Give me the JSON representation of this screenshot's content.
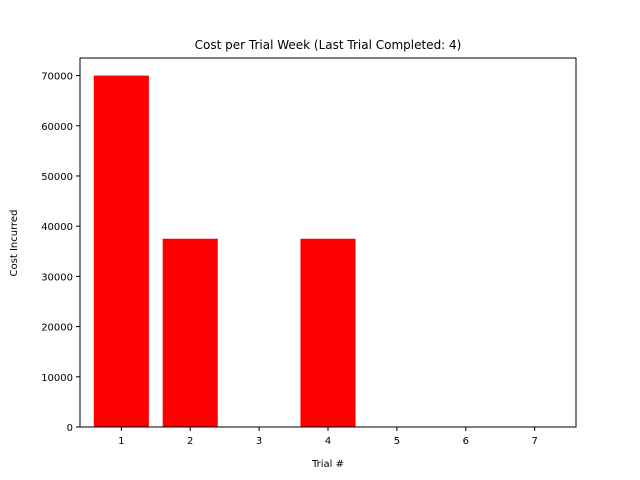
{
  "chart_data": {
    "type": "bar",
    "title": "Cost per Trial Week (Last Trial Completed: 4)",
    "xlabel": "Trial #",
    "ylabel": "Cost Incurred",
    "categories": [
      "1",
      "2",
      "3",
      "4",
      "5",
      "6",
      "7"
    ],
    "values": [
      70000,
      37500,
      0,
      37500,
      0,
      0,
      0
    ],
    "ylim": [
      0,
      73500
    ],
    "yticks": [
      0,
      10000,
      20000,
      30000,
      40000,
      50000,
      60000,
      70000
    ],
    "bar_color": "#ff0000",
    "grid": false,
    "legend": false
  }
}
